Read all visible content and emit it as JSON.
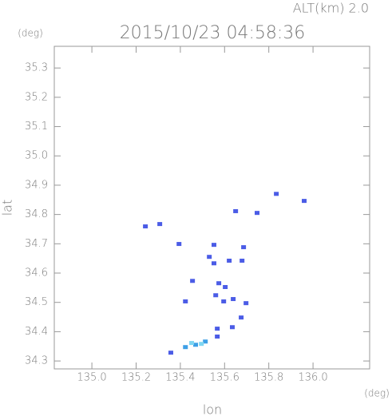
{
  "chart_data": {
    "type": "scatter",
    "title": "2015/10/23 04:58:36",
    "subtitle": "ALT(km) 2.0",
    "xlabel": "lon",
    "ylabel": "lat",
    "xunit": "(deg)",
    "yunit": "(deg)",
    "xlim": [
      134.83,
      136.256
    ],
    "ylim": [
      34.273,
      35.374
    ],
    "xticks": [
      {
        "value": 135.0,
        "label": "135.0"
      },
      135.2,
      135.4,
      135.6,
      135.8,
      {
        "value": 136.0,
        "label": "136.0"
      }
    ],
    "yticks": [
      34.3,
      34.4,
      34.5,
      34.6,
      34.7,
      34.8,
      34.9,
      {
        "value": 35.0,
        "label": "35.0"
      },
      35.1,
      35.2,
      35.3
    ],
    "series": [
      {
        "color": "#4b5ce6",
        "x": [
          135.242,
          135.307,
          135.65,
          135.747,
          135.834,
          135.96,
          135.394,
          135.552,
          135.686,
          135.531,
          135.552,
          135.621,
          135.679,
          135.455,
          135.574,
          135.603,
          135.56,
          135.596,
          135.639,
          135.423,
          135.697,
          135.675,
          135.635,
          135.567,
          135.567,
          135.357
        ],
        "y": [
          34.758,
          34.766,
          34.81,
          34.804,
          34.869,
          34.845,
          34.698,
          34.695,
          34.687,
          34.654,
          34.632,
          34.641,
          34.641,
          34.572,
          34.564,
          34.551,
          34.523,
          34.502,
          34.51,
          34.502,
          34.496,
          34.447,
          34.414,
          34.409,
          34.382,
          34.327
        ]
      },
      {
        "color": "#3d9fe6",
        "x": [
          135.513,
          135.469,
          135.423
        ],
        "y": [
          34.365,
          34.354,
          34.346
        ]
      },
      {
        "color": "#7fd6f2",
        "x": [
          135.451,
          135.495
        ],
        "y": [
          34.36,
          34.357
        ]
      }
    ]
  }
}
